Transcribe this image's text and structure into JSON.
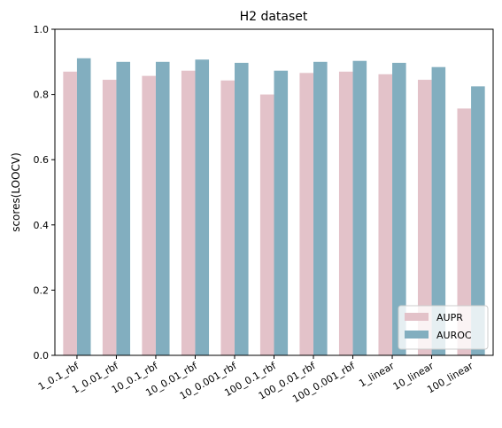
{
  "chart_data": {
    "type": "bar",
    "title": "H2 dataset",
    "xlabel": "",
    "ylabel": "scores(LOOCV)",
    "ylim": [
      0,
      1.0
    ],
    "yticks": [
      "0.0",
      "0.2",
      "0.4",
      "0.6",
      "0.8",
      "1.0"
    ],
    "ytick_values": [
      0,
      0.2,
      0.4,
      0.6,
      0.8,
      1.0
    ],
    "categories": [
      "1_0.1_rbf",
      "1_0.01_rbf",
      "10_0.1_rbf",
      "10_0.01_rbf",
      "10_0.001_rbf",
      "100_0.1_rbf",
      "100_0.01_rbf",
      "100_0.001_rbf",
      "1_linear",
      "10_linear",
      "100_linear"
    ],
    "series": [
      {
        "name": "AUPR",
        "color": "#e3c2c9",
        "values": [
          0.87,
          0.845,
          0.857,
          0.873,
          0.843,
          0.8,
          0.866,
          0.87,
          0.862,
          0.845,
          0.757
        ]
      },
      {
        "name": "AUROC",
        "color": "#82aebf",
        "values": [
          0.911,
          0.9,
          0.9,
          0.907,
          0.897,
          0.873,
          0.9,
          0.903,
          0.897,
          0.884,
          0.825
        ]
      }
    ],
    "legend_position": "bottom-right",
    "grid": false
  }
}
